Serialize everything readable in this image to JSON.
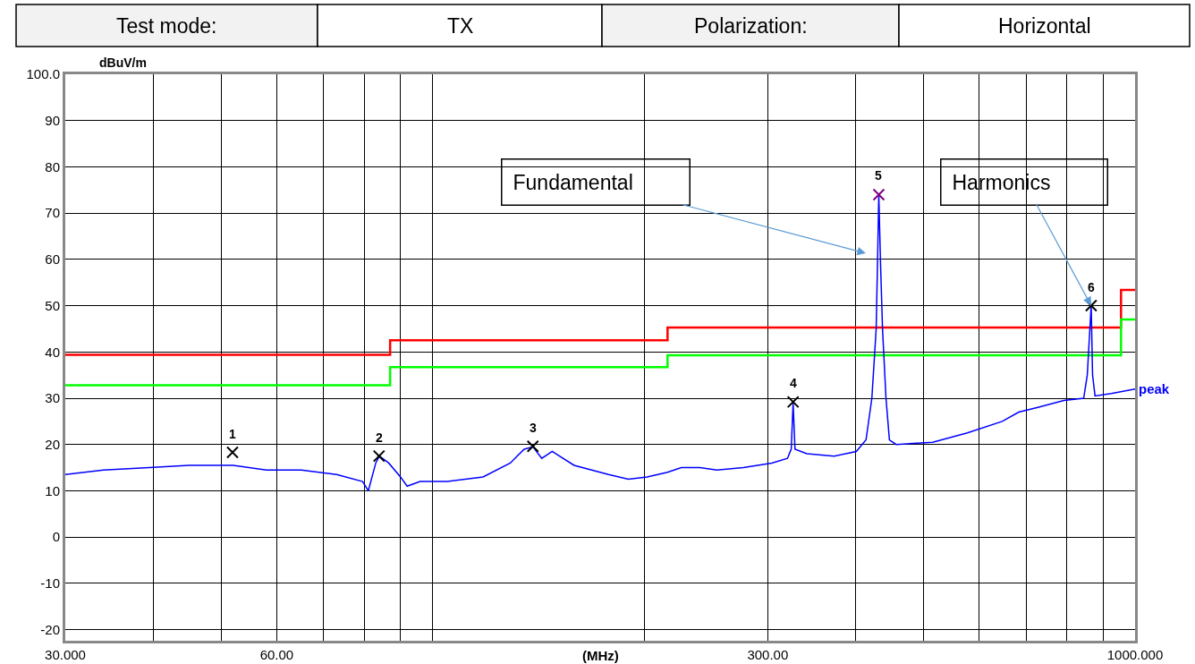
{
  "chart_data": {
    "type": "line",
    "xlabel": "(MHz)",
    "ylabel": "dBuV/m",
    "log": "x",
    "grid": true,
    "legend": false,
    "xlim": [
      30,
      1000
    ],
    "ylim": [
      -22.4,
      100
    ],
    "xticks": [
      {
        "value": 30,
        "label": "30.000"
      },
      {
        "value": 40,
        "label": null
      },
      {
        "value": 50,
        "label": null
      },
      {
        "value": 60,
        "label": "60.00"
      },
      {
        "value": 70,
        "label": null
      },
      {
        "value": 80,
        "label": null
      },
      {
        "value": 90,
        "label": null
      },
      {
        "value": 100,
        "label": null
      },
      {
        "value": 200,
        "label": null
      },
      {
        "value": 300,
        "label": "300.00"
      },
      {
        "value": 400,
        "label": null
      },
      {
        "value": 500,
        "label": null
      },
      {
        "value": 600,
        "label": null
      },
      {
        "value": 700,
        "label": null
      },
      {
        "value": 800,
        "label": null
      },
      {
        "value": 900,
        "label": null
      },
      {
        "value": 1000,
        "label": "1000.000"
      }
    ],
    "yticks": [
      {
        "value": 100,
        "label": "100.0"
      },
      90,
      80,
      70,
      60,
      50,
      40,
      30,
      20,
      10,
      0,
      -10,
      -20
    ],
    "series": [
      {
        "color": "#ff0000",
        "x": [
          30,
          87,
          87,
          216,
          216,
          955,
          955,
          1000
        ],
        "values": [
          39.4,
          39.4,
          42.5,
          42.5,
          45.3,
          45.3,
          53.4,
          53.4
        ]
      },
      {
        "color": "#00ff00",
        "x": [
          30,
          87,
          87,
          216,
          216,
          955,
          955,
          1000
        ],
        "values": [
          32.8,
          32.8,
          36.7,
          36.7,
          39.3,
          39.3,
          47.0,
          47.0
        ]
      },
      {
        "name": "peak",
        "color": "#0000ff",
        "x": [
          30,
          34,
          39.5,
          45,
          52,
          58,
          65,
          73,
          79.5,
          81,
          83,
          84,
          86.6,
          90,
          92,
          96,
          105,
          118,
          129,
          135,
          139,
          143,
          148,
          159,
          178,
          190,
          202,
          216,
          226,
          240,
          254,
          277,
          304,
          320,
          324,
          326,
          328,
          341,
          373,
          401,
          414,
          422,
          428,
          430,
          431.7,
          434,
          437,
          442,
          447,
          457,
          515,
          577,
          647,
          683,
          727,
          792,
          845,
          855,
          866,
          870,
          877,
          925,
          1000
        ],
        "values": [
          13.5,
          14.5,
          15,
          15.5,
          15.5,
          14.5,
          14.5,
          13.5,
          12,
          10,
          16,
          17.5,
          16,
          13,
          11,
          12,
          12,
          13,
          16,
          19,
          19.5,
          17,
          18.5,
          15.5,
          13.5,
          12.5,
          13,
          14,
          15,
          15,
          14.5,
          15,
          16,
          17,
          19,
          29,
          19,
          18,
          17.5,
          18.5,
          21,
          30,
          45,
          60,
          74,
          60,
          45,
          30,
          21,
          20,
          20.5,
          22.5,
          25,
          27,
          28,
          29.5,
          30,
          35,
          50,
          35,
          30.5,
          31,
          32
        ]
      },
      {
        "type": "scatter",
        "marker": "cross",
        "x": [
          51.9,
          83.9,
          138.9,
          326,
          431.7,
          866
        ],
        "values": [
          18.3,
          17.5,
          19.6,
          29.2,
          74,
          50
        ],
        "colors": [
          "#000000",
          "#000000",
          "#000000",
          "#000000",
          "#800080",
          "#000000"
        ]
      }
    ],
    "annotations": [
      "Test mode:",
      "TX",
      "Polarization:",
      "Horizontal",
      {
        "text": "1",
        "x": 51.9,
        "y": 18.3
      },
      {
        "text": "2",
        "x": 83.9,
        "y": 17.5
      },
      {
        "text": "3",
        "x": 138.9,
        "y": 19.6
      },
      {
        "text": "4",
        "x": 326,
        "y": 29.2
      },
      {
        "text": "5",
        "x": 431.7,
        "y": 74
      },
      {
        "text": "6",
        "x": 866,
        "y": 50
      },
      "Fundamental",
      {
        "text": "Harmonics",
        "x": 866,
        "y": 50
      }
    ]
  }
}
